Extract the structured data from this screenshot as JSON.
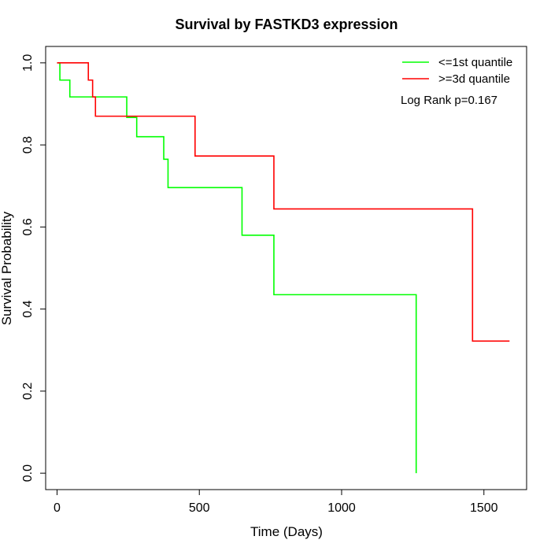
{
  "chart_data": {
    "type": "line",
    "subtype": "kaplan-meier step",
    "title": "Survival by FASTKD3 expression",
    "xlabel": "Time (Days)",
    "ylabel": "Survival Probability",
    "xlim": [
      -40,
      1650
    ],
    "ylim": [
      -0.04,
      1.04
    ],
    "x_ticks": [
      0,
      500,
      1000,
      1500
    ],
    "x_tick_labels": [
      "0",
      "500",
      "1000",
      "1500"
    ],
    "y_ticks": [
      0.0,
      0.2,
      0.4,
      0.6,
      0.8,
      1.0
    ],
    "y_tick_labels": [
      "0.0",
      "0.2",
      "0.4",
      "0.6",
      "0.8",
      "1.0"
    ],
    "legend_position": "top-right",
    "annotation": "Log Rank p=0.167",
    "series": [
      {
        "name": "<=1st quantile",
        "color": "#00ff00",
        "x": [
          0,
          10,
          45,
          245,
          280,
          375,
          390,
          650,
          762,
          1262,
          1262
        ],
        "y": [
          1.0,
          0.958,
          0.917,
          0.867,
          0.82,
          0.765,
          0.696,
          0.58,
          0.435,
          0.435,
          0.0
        ]
      },
      {
        "name": ">=3d quantile",
        "color": "#ff0000",
        "x": [
          0,
          110,
          125,
          135,
          485,
          762,
          1460,
          1590
        ],
        "y": [
          1.0,
          0.958,
          0.917,
          0.87,
          0.773,
          0.644,
          0.322,
          0.322
        ]
      }
    ]
  }
}
